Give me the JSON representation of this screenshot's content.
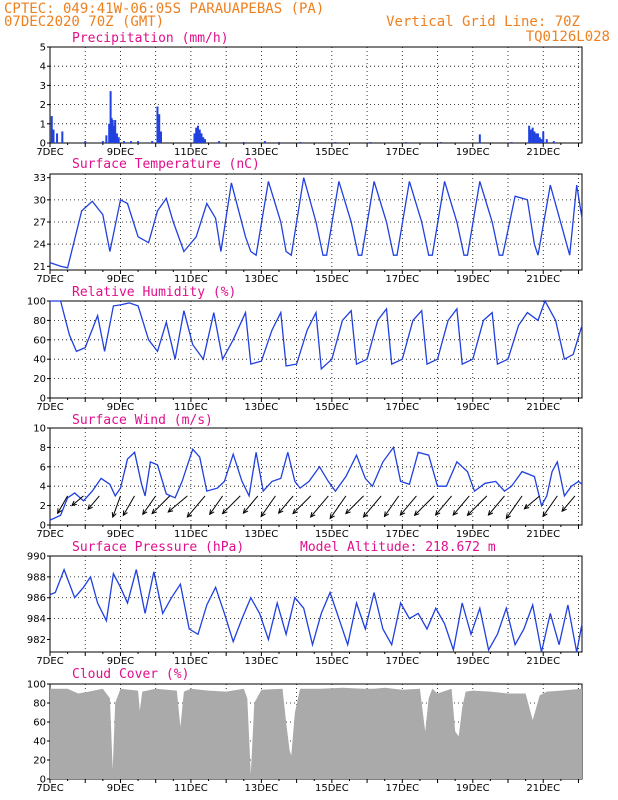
{
  "header": {
    "line1": "CPTEC:  049:41W-06:05S  PARAUAPEBAS (PA)",
    "line2": "07DEC2020 70Z (GMT)",
    "grid_note": "Vertical Grid Line: 70Z",
    "code": "TQ0126L028",
    "model_altitude": "Model Altitude: 218.672 m"
  },
  "colors": {
    "series": "#2040e0",
    "title": "#e0108c",
    "header": "#ee8020",
    "cloud": "#aaaaaa",
    "wind": "#000000"
  },
  "x_axis": {
    "ticks": [
      {
        "day": 7,
        "label": "7DEC"
      },
      {
        "day": 9,
        "label": "9DEC"
      },
      {
        "day": 11,
        "label": "11DEC"
      },
      {
        "day": 13,
        "label": "13DEC"
      },
      {
        "day": 15,
        "label": "15DEC"
      },
      {
        "day": 17,
        "label": "17DEC"
      },
      {
        "day": 19,
        "label": "19DEC"
      },
      {
        "day": 21,
        "label": "21DEC"
      }
    ],
    "range": [
      7.0,
      22.1
    ]
  },
  "chart_data": [
    {
      "id": "precip",
      "type": "bar",
      "title": "Precipitation (mm/h)",
      "ylim": [
        0,
        5
      ],
      "yticks": [
        0,
        1,
        2,
        3,
        4,
        5
      ],
      "x": [
        7.05,
        7.1,
        7.2,
        7.35,
        8.0,
        8.5,
        8.6,
        8.68,
        8.72,
        8.75,
        8.78,
        8.82,
        8.85,
        8.9,
        8.95,
        9.1,
        9.3,
        9.5,
        9.9,
        10.05,
        10.1,
        10.15,
        11.1,
        11.15,
        11.2,
        11.25,
        11.3,
        11.35,
        11.4,
        11.8,
        12.5,
        13.1,
        13.5,
        14.1,
        15.1,
        16.1,
        17.1,
        18.1,
        19.2,
        20.1,
        20.6,
        20.65,
        20.7,
        20.75,
        20.8,
        20.85,
        20.9,
        20.95,
        21.0,
        21.1,
        21.3
      ],
      "values": [
        1.4,
        0.7,
        0.5,
        0.6,
        0.1,
        0.1,
        0.4,
        1.0,
        2.7,
        1.3,
        1.2,
        0.9,
        1.2,
        0.5,
        0.3,
        0.1,
        0.1,
        0.1,
        0.1,
        1.9,
        1.5,
        0.6,
        0.5,
        0.8,
        0.9,
        0.7,
        0.5,
        0.3,
        0.2,
        0.1,
        0.05,
        0.1,
        0.05,
        0.05,
        0.05,
        0.05,
        0.05,
        0.05,
        0.45,
        0.05,
        0.9,
        0.7,
        0.8,
        0.6,
        0.5,
        0.5,
        0.3,
        0.2,
        0.6,
        0.2,
        0.1
      ]
    },
    {
      "id": "temp",
      "type": "line",
      "title": "Surface Temperature (nC)",
      "ylim": [
        20.5,
        33.5
      ],
      "yticks": [
        21,
        24,
        27,
        30,
        33
      ],
      "x": [
        7.0,
        7.3,
        7.5,
        7.9,
        8.2,
        8.5,
        8.7,
        9.0,
        9.2,
        9.5,
        9.8,
        10.05,
        10.3,
        10.5,
        10.8,
        11.15,
        11.45,
        11.7,
        11.85,
        12.15,
        12.55,
        12.7,
        12.85,
        13.2,
        13.55,
        13.7,
        13.85,
        14.2,
        14.55,
        14.75,
        14.85,
        15.2,
        15.55,
        15.75,
        15.85,
        16.2,
        16.55,
        16.75,
        16.85,
        17.2,
        17.55,
        17.75,
        17.85,
        18.2,
        18.55,
        18.75,
        18.85,
        19.2,
        19.55,
        19.75,
        19.85,
        20.2,
        20.55,
        20.75,
        20.85,
        21.2,
        21.55,
        21.75,
        21.95,
        22.1
      ],
      "values": [
        21.5,
        21.0,
        20.8,
        28.5,
        29.8,
        28.0,
        23.0,
        30.0,
        29.5,
        25.0,
        24.2,
        28.5,
        30.2,
        27.0,
        23.0,
        25.0,
        29.5,
        27.5,
        23.0,
        32.3,
        25.0,
        23.0,
        22.5,
        32.5,
        27.0,
        23.0,
        22.5,
        33.0,
        27.0,
        22.5,
        22.5,
        32.5,
        27.0,
        22.5,
        22.5,
        32.5,
        27.0,
        22.5,
        22.5,
        32.5,
        27.0,
        22.5,
        22.5,
        32.5,
        27.0,
        22.5,
        22.5,
        32.5,
        27.0,
        22.5,
        22.5,
        30.5,
        30.0,
        24.0,
        22.5,
        32.0,
        26.0,
        22.5,
        32.0,
        27.5
      ]
    },
    {
      "id": "rh",
      "type": "line",
      "title": "Relative Humidity (%)",
      "ylim": [
        0,
        100
      ],
      "yticks": [
        0,
        20,
        40,
        60,
        80,
        100
      ],
      "x": [
        7.0,
        7.3,
        7.55,
        7.75,
        8.0,
        8.35,
        8.55,
        8.8,
        9.0,
        9.25,
        9.5,
        9.8,
        10.05,
        10.3,
        10.55,
        10.8,
        11.05,
        11.35,
        11.65,
        11.9,
        12.2,
        12.55,
        12.7,
        13.0,
        13.3,
        13.55,
        13.7,
        14.0,
        14.3,
        14.55,
        14.7,
        15.0,
        15.3,
        15.55,
        15.7,
        16.0,
        16.3,
        16.55,
        16.7,
        17.0,
        17.3,
        17.55,
        17.7,
        18.0,
        18.3,
        18.55,
        18.7,
        19.0,
        19.3,
        19.55,
        19.7,
        20.0,
        20.3,
        20.55,
        20.85,
        21.05,
        21.35,
        21.6,
        21.85,
        22.1
      ],
      "values": [
        100,
        100,
        65,
        48,
        52,
        85,
        48,
        95,
        96,
        98,
        95,
        60,
        48,
        78,
        40,
        90,
        55,
        40,
        88,
        40,
        60,
        88,
        35,
        38,
        70,
        88,
        33,
        35,
        70,
        88,
        30,
        40,
        80,
        90,
        35,
        40,
        80,
        92,
        35,
        40,
        80,
        90,
        35,
        40,
        80,
        92,
        35,
        40,
        80,
        88,
        35,
        40,
        75,
        88,
        80,
        100,
        80,
        40,
        45,
        75
      ]
    },
    {
      "id": "wind",
      "type": "line",
      "title": "Surface Wind (m/s)",
      "ylim": [
        0,
        10
      ],
      "yticks": [
        0,
        2,
        4,
        6,
        8,
        10
      ],
      "x": [
        7.0,
        7.3,
        7.5,
        7.7,
        7.95,
        8.2,
        8.45,
        8.7,
        8.85,
        9.0,
        9.2,
        9.4,
        9.6,
        9.7,
        9.85,
        10.05,
        10.3,
        10.55,
        10.75,
        11.05,
        11.25,
        11.45,
        11.75,
        11.95,
        12.2,
        12.45,
        12.65,
        12.85,
        13.05,
        13.3,
        13.55,
        13.75,
        13.95,
        14.1,
        14.35,
        14.65,
        14.9,
        15.1,
        15.4,
        15.7,
        15.95,
        16.15,
        16.45,
        16.75,
        16.95,
        17.2,
        17.45,
        17.75,
        18.0,
        18.25,
        18.55,
        18.85,
        19.05,
        19.35,
        19.65,
        19.9,
        20.1,
        20.4,
        20.75,
        20.95,
        21.1,
        21.25,
        21.4,
        21.6,
        21.8,
        22.0,
        22.1
      ],
      "values": [
        0.5,
        1.0,
        2.8,
        3.3,
        2.5,
        3.5,
        4.8,
        4.2,
        3.0,
        3.8,
        6.8,
        7.5,
        4.2,
        3.0,
        6.5,
        6.2,
        3.2,
        2.8,
        4.5,
        7.8,
        7.0,
        3.5,
        3.8,
        4.5,
        7.3,
        4.5,
        3.0,
        7.5,
        3.5,
        4.5,
        4.8,
        7.5,
        4.5,
        3.8,
        4.5,
        6.0,
        4.5,
        3.5,
        5.0,
        7.2,
        4.8,
        4.0,
        6.5,
        8.0,
        4.5,
        4.2,
        7.5,
        7.2,
        4.0,
        4.0,
        6.5,
        5.5,
        3.5,
        4.3,
        4.5,
        3.5,
        4.0,
        5.5,
        5.0,
        2.0,
        3.0,
        5.5,
        6.5,
        3.0,
        4.0,
        4.5,
        4.2
      ],
      "vectors": {
        "x": [
          7.5,
          7.95,
          8.4,
          9.0,
          9.4,
          10.0,
          10.4,
          10.9,
          11.4,
          11.9,
          12.4,
          12.9,
          13.4,
          13.9,
          14.4,
          14.9,
          15.4,
          15.9,
          16.4,
          16.9,
          17.4,
          17.9,
          18.4,
          18.9,
          19.4,
          19.9,
          20.4,
          20.9,
          21.4,
          21.9
        ],
        "dir_deg": [
          210,
          230,
          220,
          200,
          210,
          215,
          225,
          230,
          220,
          215,
          225,
          220,
          215,
          220,
          225,
          220,
          215,
          225,
          220,
          215,
          220,
          225,
          220,
          220,
          225,
          220,
          215,
          230,
          215,
          220
        ],
        "speed": [
          4.0,
          3.0,
          3.5,
          4.5,
          4.5,
          4.5,
          5.0,
          5.0,
          5.5,
          4.5,
          5.0,
          4.5,
          5.0,
          4.5,
          5.0,
          5.5,
          5.5,
          5.0,
          5.5,
          5.0,
          5.0,
          5.5,
          5.0,
          5.0,
          5.5,
          5.0,
          5.5,
          4.0,
          5.0,
          4.0
        ]
      }
    },
    {
      "id": "press",
      "type": "line",
      "title": "Surface Pressure (hPa)",
      "ylim": [
        980.8,
        990
      ],
      "yticks": [
        982,
        984,
        986,
        988,
        990
      ],
      "x": [
        7.0,
        7.15,
        7.4,
        7.7,
        7.95,
        8.15,
        8.35,
        8.6,
        8.8,
        9.0,
        9.2,
        9.45,
        9.7,
        9.95,
        10.2,
        10.45,
        10.7,
        10.95,
        11.2,
        11.45,
        11.7,
        11.95,
        12.2,
        12.45,
        12.7,
        12.95,
        13.2,
        13.45,
        13.7,
        13.95,
        14.2,
        14.45,
        14.7,
        14.95,
        15.2,
        15.45,
        15.7,
        15.95,
        16.2,
        16.45,
        16.7,
        16.95,
        17.2,
        17.45,
        17.7,
        17.95,
        18.2,
        18.45,
        18.7,
        18.95,
        19.2,
        19.45,
        19.7,
        19.95,
        20.2,
        20.45,
        20.7,
        20.95,
        21.2,
        21.45,
        21.7,
        21.95,
        22.1
      ],
      "values": [
        986.3,
        986.5,
        988.7,
        986.0,
        987.0,
        988.0,
        985.5,
        983.8,
        988.3,
        987.0,
        985.5,
        988.7,
        984.5,
        988.5,
        984.5,
        986.0,
        987.3,
        983.0,
        982.5,
        985.3,
        987.0,
        984.5,
        981.8,
        984.0,
        986.0,
        984.5,
        982.0,
        985.5,
        982.5,
        986.0,
        985.0,
        981.5,
        984.5,
        986.5,
        984.0,
        981.5,
        985.5,
        983.0,
        986.5,
        983.0,
        981.5,
        985.5,
        984.0,
        984.5,
        983.0,
        985.0,
        983.5,
        981.0,
        985.5,
        982.5,
        985.0,
        981.0,
        982.5,
        985.0,
        981.5,
        983.0,
        985.3,
        980.8,
        984.5,
        981.5,
        985.3,
        980.8,
        983.5
      ]
    },
    {
      "id": "cloud",
      "type": "area",
      "title": "Cloud Cover (%)",
      "ylim": [
        0,
        100
      ],
      "yticks": [
        0,
        20,
        40,
        60,
        80,
        100
      ],
      "x": [
        7.0,
        7.5,
        7.8,
        8.1,
        8.5,
        8.7,
        8.78,
        8.85,
        9.0,
        9.5,
        9.55,
        9.62,
        10.0,
        10.6,
        10.7,
        10.8,
        11.0,
        11.5,
        12.0,
        12.5,
        12.6,
        12.7,
        12.8,
        13.0,
        13.6,
        13.7,
        13.8,
        13.85,
        13.95,
        14.1,
        14.7,
        15.3,
        15.9,
        16.2,
        16.5,
        17.0,
        17.5,
        17.65,
        17.75,
        17.85,
        18.0,
        18.4,
        18.5,
        18.6,
        18.7,
        18.8,
        19.0,
        19.5,
        20.0,
        20.5,
        20.7,
        20.9,
        21.1,
        21.5,
        22.1
      ],
      "values": [
        95,
        95,
        90,
        92,
        95,
        85,
        10,
        80,
        95,
        93,
        72,
        92,
        95,
        93,
        55,
        92,
        95,
        93,
        92,
        95,
        85,
        5,
        80,
        94,
        95,
        60,
        30,
        25,
        70,
        95,
        95,
        96,
        95,
        95,
        96,
        94,
        95,
        50,
        85,
        95,
        90,
        95,
        50,
        45,
        75,
        92,
        93,
        92,
        90,
        90,
        62,
        88,
        92,
        93,
        95
      ]
    }
  ]
}
